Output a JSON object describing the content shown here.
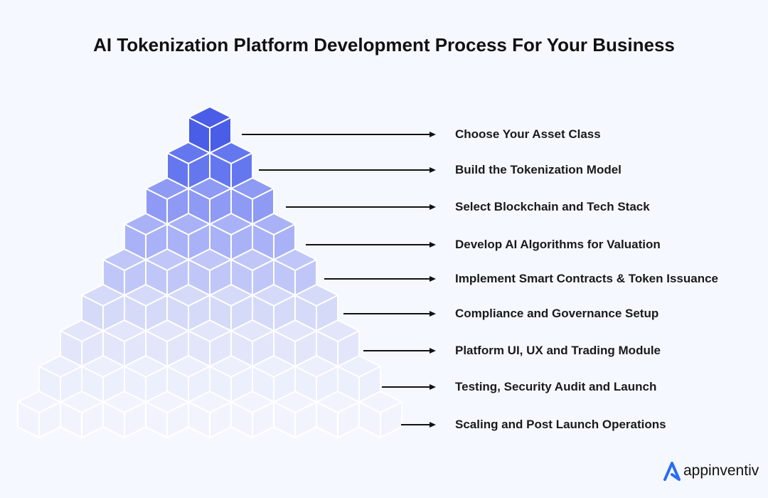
{
  "title": "AI Tokenization Platform Development Process For Your Business",
  "steps": [
    {
      "label": "Choose Your Asset Class",
      "color": "#4a5de6"
    },
    {
      "label": "Build the Tokenization Model",
      "color": "#6577ef"
    },
    {
      "label": "Select Blockchain and Tech Stack",
      "color": "#8e9af3"
    },
    {
      "label": "Develop AI Algorithms for Valuation",
      "color": "#a9b2f6"
    },
    {
      "label": "Implement Smart Contracts & Token Issuance",
      "color": "#c0c7f8"
    },
    {
      "label": "Compliance and Governance Setup",
      "color": "#d5daf9"
    },
    {
      "label": "Platform UI, UX and Trading Module",
      "color": "#e3e6fb"
    },
    {
      "label": "Testing, Security Audit and Launch",
      "color": "#eceffc"
    },
    {
      "label": "Scaling and Post Launch Operations",
      "color": "#f2f4fd"
    }
  ],
  "brand": {
    "name": "appinventiv",
    "color": "#2b6cf6"
  }
}
